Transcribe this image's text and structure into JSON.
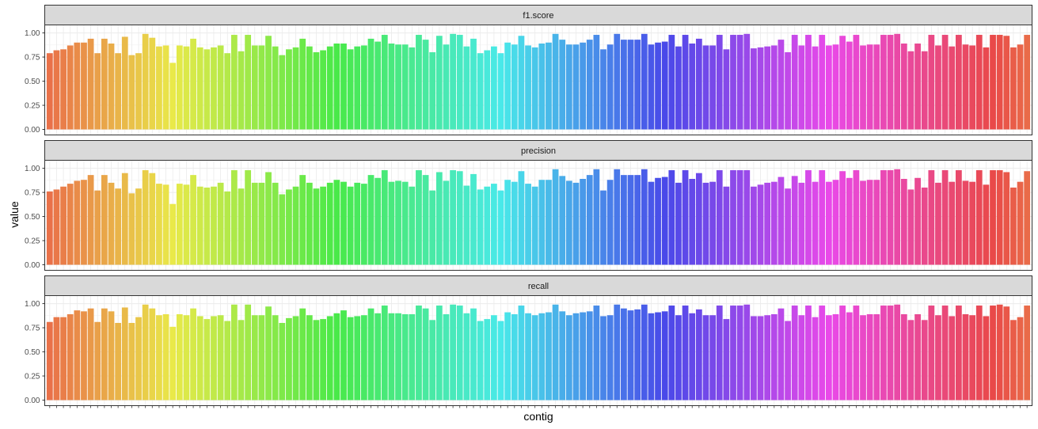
{
  "chart_data": {
    "type": "bar",
    "xlabel": "contig",
    "ylabel": "value",
    "ylim": [
      0,
      1.05
    ],
    "yticks": [
      "0.00",
      "0.25",
      "0.50",
      "0.75",
      "1.00"
    ],
    "grid": true,
    "legend": "none",
    "x_tick_labels_shown": false,
    "n_categories": 144,
    "facets": [
      {
        "name": "f1.score",
        "values": [
          0.79,
          0.82,
          0.83,
          0.87,
          0.9,
          0.9,
          0.94,
          0.79,
          0.94,
          0.89,
          0.79,
          0.96,
          0.77,
          0.79,
          0.99,
          0.95,
          0.86,
          0.87,
          0.69,
          0.87,
          0.86,
          0.94,
          0.85,
          0.83,
          0.85,
          0.87,
          0.79,
          0.98,
          0.81,
          0.98,
          0.87,
          0.87,
          0.97,
          0.86,
          0.77,
          0.83,
          0.85,
          0.94,
          0.86,
          0.8,
          0.82,
          0.86,
          0.89,
          0.89,
          0.83,
          0.86,
          0.87,
          0.94,
          0.91,
          0.98,
          0.89,
          0.88,
          0.88,
          0.85,
          0.98,
          0.93,
          0.8,
          0.97,
          0.88,
          0.99,
          0.98,
          0.86,
          0.94,
          0.79,
          0.82,
          0.86,
          0.79,
          0.9,
          0.88,
          0.97,
          0.87,
          0.85,
          0.89,
          0.9,
          0.99,
          0.93,
          0.88,
          0.88,
          0.9,
          0.93,
          0.98,
          0.83,
          0.88,
          0.99,
          0.93,
          0.93,
          0.93,
          0.99,
          0.88,
          0.9,
          0.91,
          0.98,
          0.86,
          0.98,
          0.89,
          0.94,
          0.87,
          0.87,
          0.98,
          0.83,
          0.98,
          0.98,
          0.99,
          0.84,
          0.85,
          0.86,
          0.87,
          0.93,
          0.8,
          0.98,
          0.87,
          0.98,
          0.86,
          0.98,
          0.87,
          0.88,
          0.97,
          0.91,
          0.98,
          0.87,
          0.88,
          0.88,
          0.98,
          0.98,
          0.99,
          0.89,
          0.81,
          0.89,
          0.81,
          0.98,
          0.87,
          0.98,
          0.86,
          0.98,
          0.88,
          0.87,
          0.98,
          0.85,
          0.98,
          0.98,
          0.97,
          0.85,
          0.88,
          0.98
        ]
      },
      {
        "name": "precision",
        "values": [
          0.76,
          0.78,
          0.81,
          0.84,
          0.87,
          0.88,
          0.93,
          0.77,
          0.93,
          0.85,
          0.79,
          0.95,
          0.74,
          0.79,
          0.98,
          0.95,
          0.84,
          0.83,
          0.63,
          0.84,
          0.83,
          0.93,
          0.81,
          0.8,
          0.81,
          0.85,
          0.76,
          0.98,
          0.79,
          0.98,
          0.85,
          0.85,
          0.96,
          0.85,
          0.73,
          0.78,
          0.81,
          0.93,
          0.85,
          0.79,
          0.81,
          0.85,
          0.88,
          0.86,
          0.81,
          0.85,
          0.84,
          0.93,
          0.9,
          0.98,
          0.86,
          0.87,
          0.86,
          0.81,
          0.98,
          0.93,
          0.77,
          0.96,
          0.87,
          0.98,
          0.97,
          0.82,
          0.94,
          0.78,
          0.81,
          0.84,
          0.77,
          0.88,
          0.86,
          0.97,
          0.84,
          0.81,
          0.88,
          0.88,
          0.99,
          0.92,
          0.87,
          0.85,
          0.89,
          0.93,
          0.99,
          0.77,
          0.88,
          0.99,
          0.93,
          0.93,
          0.93,
          0.99,
          0.86,
          0.9,
          0.91,
          0.98,
          0.85,
          0.98,
          0.89,
          0.95,
          0.85,
          0.86,
          0.98,
          0.81,
          0.98,
          0.98,
          0.98,
          0.81,
          0.83,
          0.85,
          0.86,
          0.91,
          0.79,
          0.92,
          0.85,
          0.98,
          0.86,
          0.98,
          0.86,
          0.88,
          0.97,
          0.9,
          0.98,
          0.87,
          0.88,
          0.88,
          0.98,
          0.98,
          0.99,
          0.89,
          0.78,
          0.9,
          0.8,
          0.98,
          0.85,
          0.98,
          0.86,
          0.98,
          0.87,
          0.86,
          0.98,
          0.83,
          0.98,
          0.98,
          0.96,
          0.8,
          0.86,
          0.97
        ]
      },
      {
        "name": "recall",
        "values": [
          0.81,
          0.86,
          0.86,
          0.89,
          0.93,
          0.92,
          0.95,
          0.81,
          0.95,
          0.92,
          0.8,
          0.96,
          0.8,
          0.86,
          0.99,
          0.95,
          0.88,
          0.89,
          0.76,
          0.89,
          0.88,
          0.95,
          0.87,
          0.84,
          0.87,
          0.88,
          0.82,
          0.99,
          0.83,
          0.99,
          0.88,
          0.88,
          0.97,
          0.88,
          0.8,
          0.85,
          0.87,
          0.95,
          0.88,
          0.83,
          0.84,
          0.87,
          0.9,
          0.93,
          0.86,
          0.87,
          0.88,
          0.95,
          0.9,
          0.98,
          0.9,
          0.9,
          0.89,
          0.89,
          0.98,
          0.95,
          0.83,
          0.98,
          0.89,
          0.99,
          0.98,
          0.9,
          0.95,
          0.82,
          0.84,
          0.88,
          0.82,
          0.91,
          0.89,
          0.98,
          0.9,
          0.88,
          0.9,
          0.91,
          0.99,
          0.92,
          0.88,
          0.9,
          0.91,
          0.92,
          0.98,
          0.87,
          0.88,
          0.99,
          0.95,
          0.93,
          0.94,
          0.99,
          0.9,
          0.91,
          0.92,
          0.98,
          0.88,
          0.98,
          0.9,
          0.94,
          0.88,
          0.88,
          0.98,
          0.84,
          0.98,
          0.98,
          0.99,
          0.87,
          0.87,
          0.88,
          0.89,
          0.95,
          0.82,
          0.98,
          0.88,
          0.98,
          0.86,
          0.98,
          0.88,
          0.89,
          0.98,
          0.91,
          0.98,
          0.88,
          0.89,
          0.89,
          0.98,
          0.98,
          0.99,
          0.89,
          0.83,
          0.89,
          0.83,
          0.98,
          0.88,
          0.98,
          0.87,
          0.98,
          0.89,
          0.88,
          0.98,
          0.87,
          0.98,
          0.99,
          0.97,
          0.83,
          0.86,
          0.98
        ]
      }
    ]
  }
}
